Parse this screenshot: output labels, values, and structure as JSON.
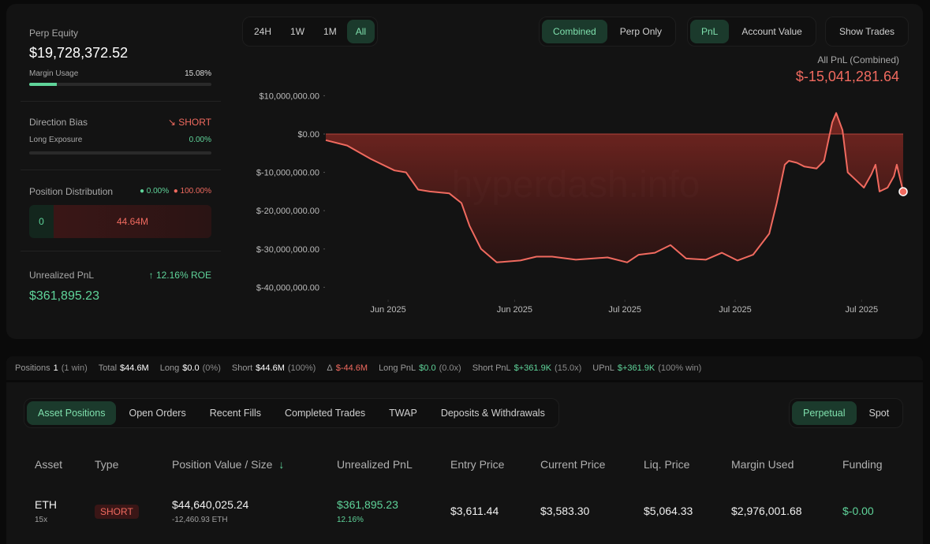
{
  "summary": {
    "perp_equity": {
      "label": "Perp Equity",
      "value": "$19,728,372.52"
    },
    "margin_usage": {
      "label": "Margin Usage",
      "value": 15.08,
      "value_label": "15.08%"
    },
    "direction_bias": {
      "label": "Direction Bias",
      "value": "SHORT"
    },
    "long_exposure": {
      "label": "Long Exposure",
      "value": 0,
      "value_label": "0.00%"
    },
    "position_distribution": {
      "label": "Position Distribution",
      "long_pct": "0.00%",
      "short_pct": "100.00%",
      "long_value": "0",
      "short_value": "44.64M"
    },
    "unrealized_pnl": {
      "label": "Unrealized PnL",
      "roe": "12.16% ROE",
      "value": "$361,895.23"
    }
  },
  "controls": {
    "ranges": [
      "24H",
      "1W",
      "1M",
      "All"
    ],
    "modes": [
      "Combined",
      "Perp Only"
    ],
    "metrics": [
      "PnL",
      "Account Value"
    ],
    "show_trades": "Show Trades"
  },
  "chart_data": {
    "type": "area",
    "title": "All PnL (Combined)",
    "headline": "$-15,041,281.64",
    "watermark": "hyperdash.info",
    "color": "#f06a5f",
    "x": [
      0,
      3.7,
      7.8,
      11.9,
      13.9,
      16.0,
      18.0,
      21.4,
      23.5,
      24.9,
      26.9,
      29.6,
      33.7,
      36.5,
      39.2,
      43.3,
      48.8,
      52.2,
      54.2,
      57.0,
      59.7,
      62.4,
      65.8,
      68.6,
      71.3,
      74.0,
      76.8,
      78.1,
      79.5,
      80.2,
      81.6,
      82.9,
      85.0,
      86.3,
      87.7,
      88.4,
      89.5,
      90.4,
      91.8,
      93.2,
      94.5,
      95.2,
      95.9,
      97.3,
      98.4,
      98.9,
      100
    ],
    "values": [
      -1600000,
      -3000000,
      -6500000,
      -9500000,
      -10000000,
      -14500000,
      -15000000,
      -15500000,
      -18000000,
      -24000000,
      -30000000,
      -33500000,
      -33000000,
      -32000000,
      -32000000,
      -32800000,
      -32200000,
      -33500000,
      -31500000,
      -31000000,
      -29000000,
      -32500000,
      -32800000,
      -31000000,
      -33000000,
      -31500000,
      -26000000,
      -18000000,
      -8000000,
      -7000000,
      -7500000,
      -8500000,
      -9000000,
      -7000000,
      3000000,
      5500000,
      1000000,
      -10000000,
      -12000000,
      -14000000,
      -10500000,
      -8000000,
      -15000000,
      -14000000,
      -11000000,
      -8000000,
      -15041281.64
    ],
    "xlim": [
      0,
      100
    ],
    "xticks": [
      {
        "value": 10.8,
        "label": "Jun 2025"
      },
      {
        "value": 32.7,
        "label": "Jun 2025"
      },
      {
        "value": 51.8,
        "label": "Jul 2025"
      },
      {
        "value": 70.9,
        "label": "Jul 2025"
      },
      {
        "value": 92.8,
        "label": "Jul 2025"
      }
    ],
    "ylim": [
      -42000000,
      12000000
    ],
    "yticks": [
      {
        "value": 10000000,
        "label": "$10,000,000.00"
      },
      {
        "value": 0,
        "label": "$0.00"
      },
      {
        "value": -10000000,
        "label": "$-10,000,000.00"
      },
      {
        "value": -20000000,
        "label": "$-20,000,000.00"
      },
      {
        "value": -30000000,
        "label": "$-30,000,000.00"
      },
      {
        "value": -40000000,
        "label": "$-40,000,000.00"
      }
    ]
  },
  "stats": [
    {
      "label": "Positions",
      "value": "1",
      "note": "(1 win)"
    },
    {
      "label": "Total",
      "value": "$44.6M"
    },
    {
      "label": "Long",
      "value": "$0.0",
      "note": "(0%)"
    },
    {
      "label": "Short",
      "value": "$44.6M",
      "note": "(100%)"
    },
    {
      "label": "Δ",
      "value": "$-44.6M"
    },
    {
      "label": "Long PnL",
      "value": "$0.0",
      "note": "(0.0x)"
    },
    {
      "label": "Short PnL",
      "value": "$+361.9K",
      "note": "(15.0x)"
    },
    {
      "label": "UPnL",
      "value": "$+361.9K",
      "note": "(100% win)"
    }
  ],
  "tabs": [
    "Asset Positions",
    "Open Orders",
    "Recent Fills",
    "Completed Trades",
    "TWAP",
    "Deposits & Withdrawals"
  ],
  "market_tabs": [
    "Perpetual",
    "Spot"
  ],
  "table": {
    "columns": [
      "Asset",
      "Type",
      "Position Value / Size",
      "Unrealized PnL",
      "Entry Price",
      "Current Price",
      "Liq. Price",
      "Margin Used",
      "Funding"
    ],
    "rows": [
      {
        "asset": "ETH",
        "leverage": "15x",
        "type": "SHORT",
        "position_value": "$44,640,025.24",
        "size": "-12,460.93 ETH",
        "unrealized_pnl": "$361,895.23",
        "roe": "12.16%",
        "entry_price": "$3,611.44",
        "current_price": "$3,583.30",
        "liq_price": "$5,064.33",
        "margin_used": "$2,976,001.68",
        "funding": "$-0.00"
      }
    ]
  }
}
